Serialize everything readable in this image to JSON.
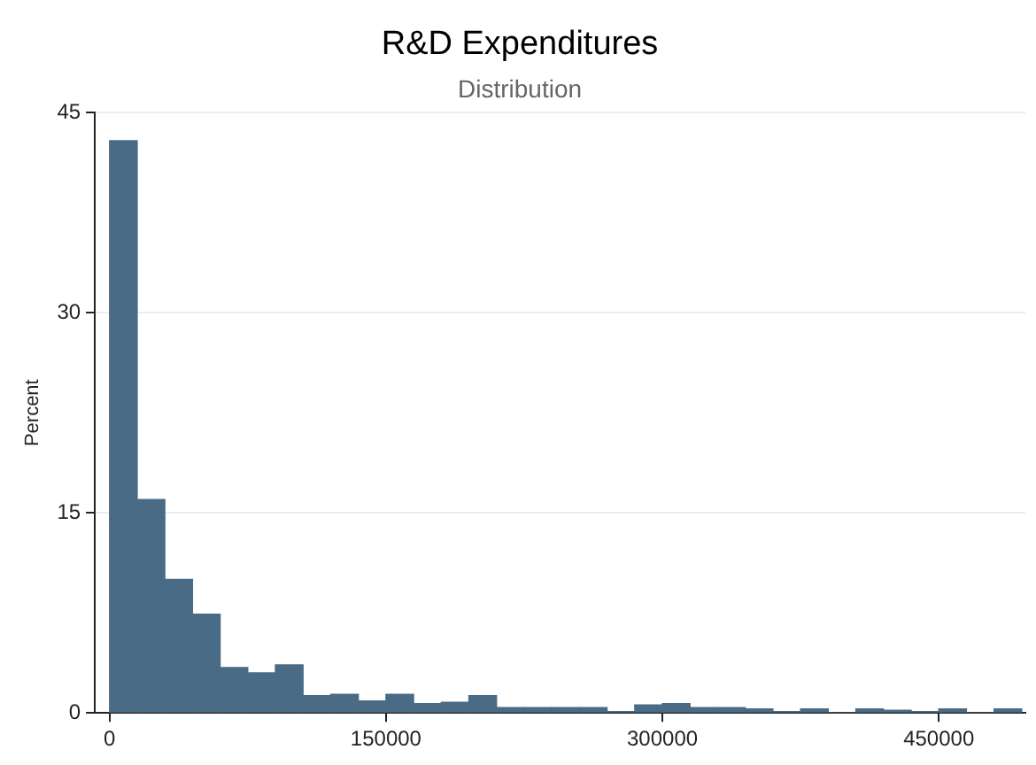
{
  "chart_data": {
    "type": "histogram",
    "title": "R&D Expenditures",
    "subtitle": "Distribution",
    "ylabel": "Percent",
    "bins": [
      0,
      15000,
      30000,
      45000,
      60000,
      75000,
      90000,
      105000,
      120000,
      135000,
      150000,
      165000,
      180000,
      195000,
      210000,
      225000,
      240000,
      255000,
      270000,
      285000,
      300000,
      315000,
      330000,
      345000,
      360000,
      375000,
      390000,
      405000,
      420000,
      435000,
      450000,
      465000,
      480000,
      495000
    ],
    "values": [
      42.9,
      16.0,
      10.0,
      7.4,
      3.4,
      3.0,
      3.6,
      1.3,
      1.4,
      0.9,
      1.4,
      0.7,
      0.8,
      1.3,
      0.4,
      0.4,
      0.4,
      0.4,
      0.1,
      0.6,
      0.7,
      0.4,
      0.4,
      0.3,
      0.1,
      0.3,
      0,
      0.3,
      0.2,
      0.1,
      0.3,
      0,
      0.3
    ],
    "color": "#4a6b85",
    "xlim": [
      -8000,
      497000
    ],
    "xticks": [
      0,
      150000,
      300000,
      450000
    ],
    "ylim": [
      0,
      45
    ],
    "yticks": [
      0,
      15,
      30,
      45
    ],
    "grid": "y"
  }
}
